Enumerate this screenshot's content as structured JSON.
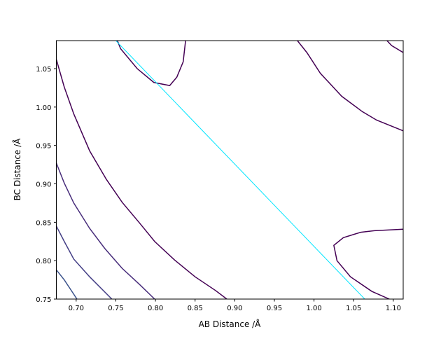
{
  "chart_data": {
    "type": "contour",
    "title": "",
    "xlabel": "AB Distance /Å",
    "ylabel": "BC Distance /Å",
    "xlim": [
      0.675,
      1.1125
    ],
    "ylim": [
      0.75,
      1.0865
    ],
    "grid": false,
    "xticks": [
      "0.70",
      "0.75",
      "0.80",
      "0.85",
      "0.90",
      "0.95",
      "1.00",
      "1.05",
      "1.10"
    ],
    "xtick_values": [
      0.7,
      0.75,
      0.8,
      0.85,
      0.9,
      0.95,
      1.0,
      1.05,
      1.1
    ],
    "yticks": [
      "0.75",
      "0.80",
      "0.85",
      "0.90",
      "0.95",
      "1.00",
      "1.05"
    ],
    "ytick_values": [
      0.75,
      0.8,
      0.85,
      0.9,
      0.95,
      1.0,
      1.05
    ],
    "contours": [
      {
        "color": "#3b528b",
        "points": [
          [
            0.675,
            0.788
          ],
          [
            0.685,
            0.775
          ],
          [
            0.701,
            0.75
          ]
        ]
      },
      {
        "color": "#433e85",
        "points": [
          [
            0.675,
            0.845
          ],
          [
            0.685,
            0.825
          ],
          [
            0.697,
            0.802
          ],
          [
            0.717,
            0.779
          ],
          [
            0.745,
            0.75
          ]
        ]
      },
      {
        "color": "#472c7a",
        "points": [
          [
            0.675,
            0.927
          ],
          [
            0.685,
            0.901
          ],
          [
            0.697,
            0.875
          ],
          [
            0.717,
            0.842
          ],
          [
            0.736,
            0.816
          ],
          [
            0.758,
            0.79
          ],
          [
            0.78,
            0.769
          ],
          [
            0.799,
            0.75
          ]
        ]
      },
      {
        "color": "#440154",
        "points": [
          [
            0.675,
            1.062
          ],
          [
            0.685,
            1.026
          ],
          [
            0.697,
            0.991
          ],
          [
            0.717,
            0.943
          ],
          [
            0.738,
            0.906
          ],
          [
            0.758,
            0.876
          ],
          [
            0.78,
            0.849
          ],
          [
            0.799,
            0.825
          ],
          [
            0.824,
            0.801
          ],
          [
            0.85,
            0.779
          ],
          [
            0.876,
            0.761
          ],
          [
            0.89,
            0.75
          ]
        ]
      },
      {
        "color": "#440154",
        "points": [
          [
            0.752,
            1.0865
          ],
          [
            0.756,
            1.076
          ],
          [
            0.777,
            1.05
          ],
          [
            0.798,
            1.032
          ],
          [
            0.818,
            1.028
          ],
          [
            0.827,
            1.039
          ],
          [
            0.835,
            1.059
          ],
          [
            0.838,
            1.0865
          ]
        ]
      },
      {
        "color": "#440154",
        "points": [
          [
            0.979,
            1.0865
          ],
          [
            0.991,
            1.071
          ],
          [
            1.008,
            1.044
          ],
          [
            1.035,
            1.014
          ],
          [
            1.061,
            0.994
          ],
          [
            1.079,
            0.983
          ],
          [
            1.1125,
            0.969
          ]
        ]
      },
      {
        "color": "#440154",
        "points": [
          [
            1.092,
            1.0865
          ],
          [
            1.098,
            1.08
          ],
          [
            1.1125,
            1.071
          ]
        ]
      },
      {
        "color": "#440154",
        "points": [
          [
            1.1125,
            0.841
          ],
          [
            1.076,
            0.839
          ],
          [
            1.059,
            0.837
          ],
          [
            1.037,
            0.83
          ],
          [
            1.025,
            0.82
          ],
          [
            1.029,
            0.8
          ],
          [
            1.046,
            0.779
          ],
          [
            1.073,
            0.76
          ],
          [
            1.095,
            0.75
          ]
        ]
      }
    ],
    "reaction_path": {
      "color": "#00e5ff",
      "points": [
        [
          0.75,
          1.0865
        ],
        [
          1.064,
          0.75
        ]
      ]
    }
  }
}
